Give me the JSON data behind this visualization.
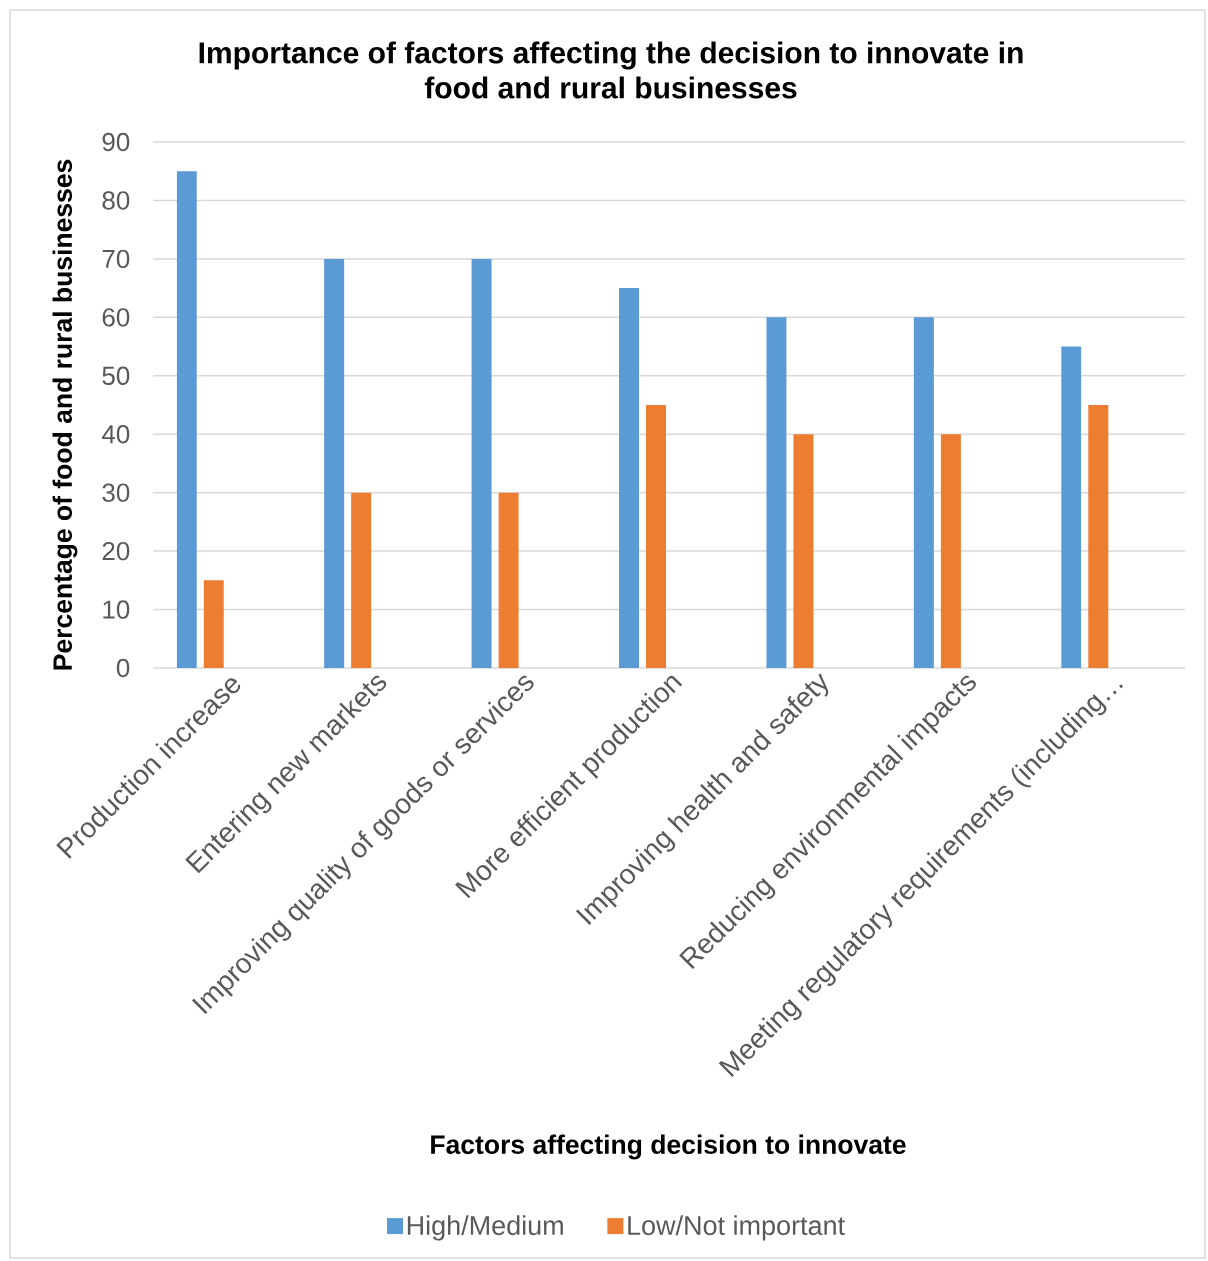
{
  "chart_data": {
    "type": "bar",
    "title": "Importance of factors affecting the decision to innovate in food and rural businesses",
    "xlabel": "Factors affecting decision to innovate",
    "ylabel": "Percentage of food and rural businesses",
    "categories": [
      "Production increase",
      "Entering new markets",
      "Improving quality of goods or services",
      "More efficient production",
      "Improving health and safety",
      "Reducing environmental impacts",
      "Meeting regulatory requirements (including…"
    ],
    "series": [
      {
        "name": "High/Medium",
        "color": "#5b9bd5",
        "values": [
          85,
          70,
          70,
          65,
          60,
          60,
          55
        ]
      },
      {
        "name": "Low/Not important",
        "color": "#ed7d31",
        "values": [
          15,
          30,
          30,
          45,
          40,
          40,
          45
        ]
      }
    ],
    "ylim": [
      0,
      90
    ],
    "yticks": [
      0,
      10,
      20,
      30,
      40,
      50,
      60,
      70,
      80,
      90
    ],
    "grid": "y",
    "legend": "bottom"
  }
}
